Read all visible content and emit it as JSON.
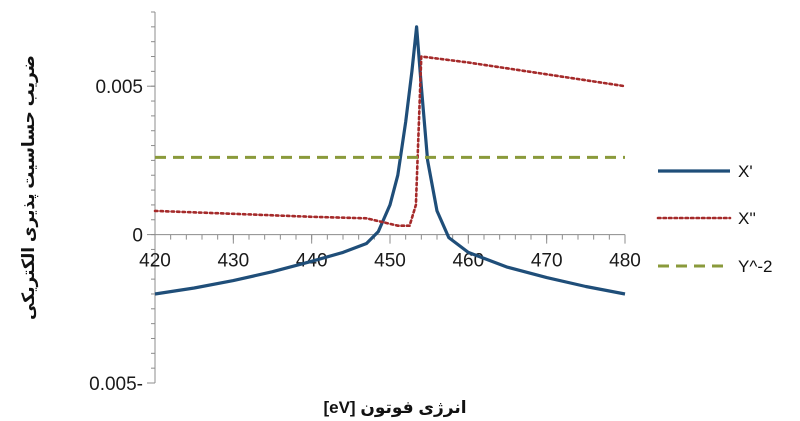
{
  "chart_data": {
    "type": "line",
    "title": "",
    "xlabel": "[eV] انرژی فوتون",
    "ylabel": "ضریب حساسیت پذیری الکتریکی",
    "xlim": [
      420,
      480
    ],
    "ylim": [
      -0.005,
      0.0075
    ],
    "x_ticks": [
      420,
      430,
      440,
      450,
      460,
      470,
      480
    ],
    "x_tick_labels": [
      "420",
      "430",
      "440",
      "450",
      "460",
      "470",
      "480"
    ],
    "y_ticks": [
      0.005,
      0,
      -0.005
    ],
    "y_tick_labels": [
      "0.005",
      "0",
      "0.005-"
    ],
    "grid": false,
    "legend_position": "right",
    "series": [
      {
        "name": "X'",
        "style": "solid",
        "color": "#1f4e79",
        "points": [
          [
            420,
            -0.002
          ],
          [
            425,
            -0.0018
          ],
          [
            430,
            -0.00155
          ],
          [
            435,
            -0.00125
          ],
          [
            440,
            -0.0009
          ],
          [
            444,
            -0.0006
          ],
          [
            447,
            -0.0003
          ],
          [
            448.5,
            0.0001
          ],
          [
            450,
            0.001
          ],
          [
            451,
            0.002
          ],
          [
            452,
            0.0038
          ],
          [
            452.8,
            0.0055
          ],
          [
            453.4,
            0.007
          ],
          [
            454,
            0.005
          ],
          [
            454.8,
            0.0025
          ],
          [
            456,
            0.0008
          ],
          [
            457.5,
            -0.0001
          ],
          [
            460,
            -0.0006
          ],
          [
            465,
            -0.0011
          ],
          [
            470,
            -0.00145
          ],
          [
            475,
            -0.00175
          ],
          [
            480,
            -0.002
          ]
        ]
      },
      {
        "name": "X''",
        "style": "dotted",
        "color": "#a52a2a",
        "points": [
          [
            420,
            0.0008
          ],
          [
            430,
            0.0007
          ],
          [
            440,
            0.0006
          ],
          [
            447,
            0.00055
          ],
          [
            451,
            0.0003
          ],
          [
            452.5,
            0.0003
          ],
          [
            453.3,
            0.001
          ],
          [
            454,
            0.006
          ],
          [
            460,
            0.0058
          ],
          [
            470,
            0.0054
          ],
          [
            480,
            0.005
          ]
        ]
      },
      {
        "name": "Y^-2",
        "style": "dashed",
        "color": "#8a9a3b",
        "points": [
          [
            420,
            0.0026
          ],
          [
            480,
            0.0026
          ]
        ]
      }
    ]
  }
}
